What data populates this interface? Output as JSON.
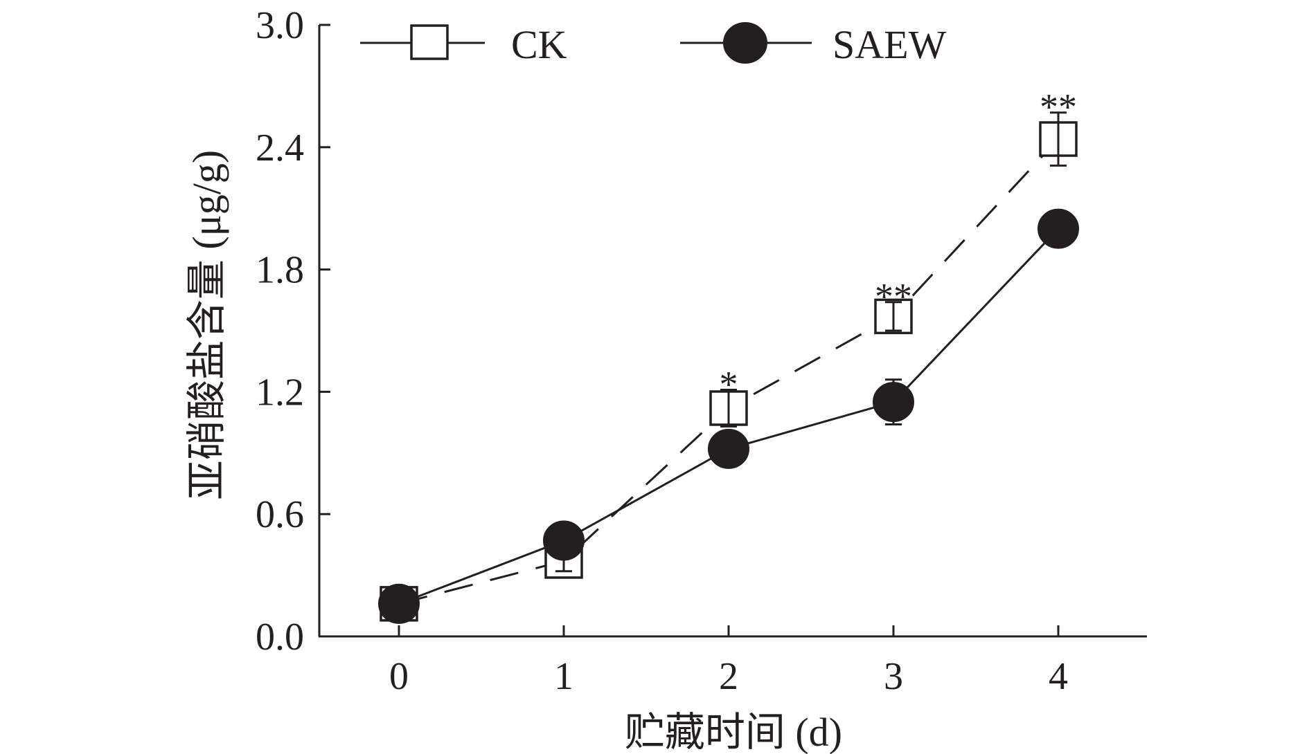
{
  "chart_data": {
    "type": "line",
    "xlabel": "贮藏时间 (d)",
    "ylabel": "亚硝酸盐含量 (μg/g)",
    "x": [
      0,
      1,
      2,
      3,
      4
    ],
    "x_tick_labels": [
      "0",
      "1",
      "2",
      "3",
      "4"
    ],
    "y_tick_labels": [
      "0.0",
      "0.6",
      "1.2",
      "1.8",
      "2.4",
      "3.0"
    ],
    "xlim": [
      -0.5,
      4.5
    ],
    "ylim": [
      0,
      3.0
    ],
    "grid": false,
    "legend_position": "top",
    "series": [
      {
        "name": "CK",
        "marker": "open-square",
        "line_style": "dashed",
        "values": [
          0.16,
          0.37,
          1.12,
          1.57,
          2.44
        ],
        "error": [
          0.05,
          0.05,
          0.09,
          0.07,
          0.13
        ],
        "significance": [
          "",
          "",
          "*",
          "**",
          "**"
        ]
      },
      {
        "name": "SAEW",
        "marker": "filled-circle",
        "line_style": "solid",
        "values": [
          0.16,
          0.47,
          0.92,
          1.15,
          2.0
        ],
        "error": [
          0.04,
          0.03,
          0.04,
          0.11,
          0.04
        ],
        "significance": [
          "",
          "",
          "",
          "",
          ""
        ]
      }
    ]
  },
  "colors": {
    "ink": "#231f20",
    "marker_fill_open": "#ffffff",
    "marker_fill_solid": "#231f20"
  }
}
